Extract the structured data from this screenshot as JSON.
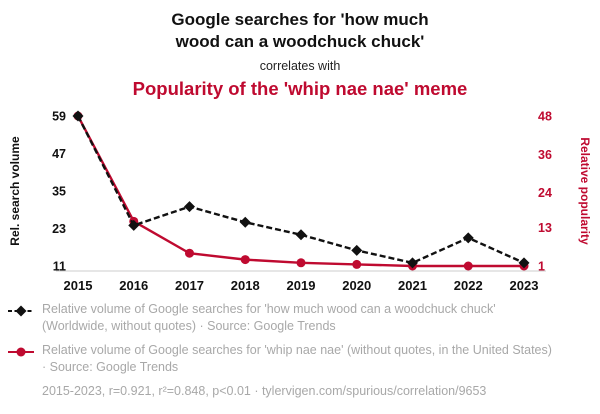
{
  "colors": {
    "series1": "#111111",
    "series2": "#bf0a30",
    "legend_text": "#a8a8a8",
    "axis_line": "#cccccc"
  },
  "chart_data": {
    "type": "line",
    "title_line1": "Google searches for 'how much",
    "title_line2": "wood can a woodchuck chuck'",
    "connector": "correlates with",
    "subtitle": "Popularity of the 'whip nae nae' meme",
    "x": [
      2015,
      2016,
      2017,
      2018,
      2019,
      2020,
      2021,
      2022,
      2023
    ],
    "series": [
      {
        "name": "Relative volume of Google searches for 'how much wood can a woodchuck chuck' (Worldwide, without quotes)",
        "source": "Google Trends",
        "axis": "left",
        "color": "#111111",
        "style": "dashed",
        "marker": "diamond",
        "values": [
          59,
          24,
          30,
          25,
          21,
          16,
          12,
          20,
          12
        ]
      },
      {
        "name": "Relative volume of Google searches for 'whip nae nae' (without quotes, in the United States)",
        "source": "Google Trends",
        "axis": "right",
        "color": "#bf0a30",
        "style": "solid",
        "marker": "circle",
        "values": [
          48,
          15,
          5,
          3,
          2,
          1.5,
          1,
          1,
          1
        ]
      }
    ],
    "left_axis": {
      "label": "Rel. search volume",
      "ticks": [
        59,
        47,
        35,
        23,
        11
      ],
      "min": 11,
      "max": 59
    },
    "right_axis": {
      "label": "Relative popularity",
      "ticks": [
        48,
        36,
        24,
        13,
        1
      ],
      "min": 1,
      "max": 48
    },
    "grid": false,
    "legend_position": "bottom"
  },
  "legend": [
    {
      "marker": "diamond",
      "text": "Relative volume of Google searches for 'how much wood can a woodchuck chuck' (Worldwide, without quotes) · Source: Google Trends"
    },
    {
      "marker": "circle",
      "text": "Relative volume of Google searches for 'whip nae nae' (without quotes, in the United States) · Source: Google Trends"
    }
  ],
  "footer": "2015-2023, r=0.921, r²=0.848, p<0.01 · tylervigen.com/spurious/correlation/9653"
}
